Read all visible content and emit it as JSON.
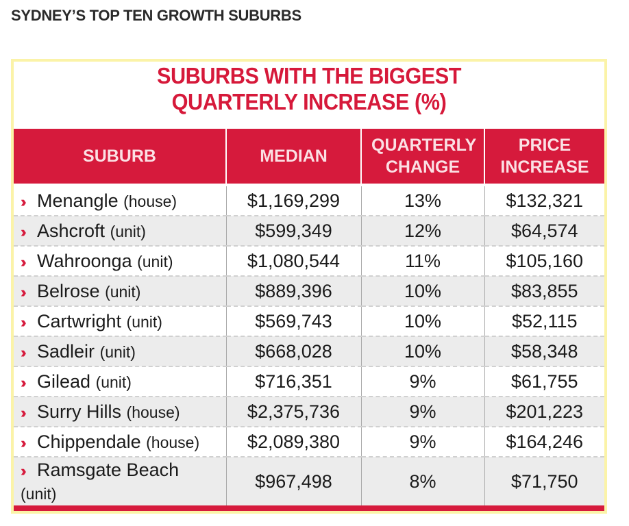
{
  "page": {
    "heading": "SYDNEY’S TOP TEN GROWTH SUBURBS"
  },
  "card": {
    "title_line1": "SUBURBS WITH THE BIGGEST",
    "title_line2": "QUARTERLY INCREASE (%)"
  },
  "table": {
    "columns": [
      "SUBURB",
      "MEDIAN",
      "QUARTERLY CHANGE",
      "PRICE INCREASE"
    ],
    "rows": [
      {
        "suburb": "Menangle",
        "type": "(house)",
        "median": "$1,169,299",
        "change": "13%",
        "increase": "$132,321"
      },
      {
        "suburb": "Ashcroft",
        "type": "(unit)",
        "median": "$599,349",
        "change": "12%",
        "increase": "$64,574"
      },
      {
        "suburb": "Wahroonga",
        "type": "(unit)",
        "median": "$1,080,544",
        "change": "11%",
        "increase": "$105,160"
      },
      {
        "suburb": "Belrose",
        "type": "(unit)",
        "median": "$889,396",
        "change": "10%",
        "increase": "$83,855"
      },
      {
        "suburb": "Cartwright",
        "type": "(unit)",
        "median": "$569,743",
        "change": "10%",
        "increase": "$52,115"
      },
      {
        "suburb": "Sadleir",
        "type": "(unit)",
        "median": "$668,028",
        "change": "10%",
        "increase": "$58,348"
      },
      {
        "suburb": "Gilead",
        "type": "(unit)",
        "median": "$716,351",
        "change": "9%",
        "increase": "$61,755"
      },
      {
        "suburb": "Surry Hills",
        "type": "(house)",
        "median": "$2,375,736",
        "change": "9%",
        "increase": "$201,223"
      },
      {
        "suburb": "Chippendale",
        "type": "(house)",
        "median": "$2,089,380",
        "change": "9%",
        "increase": "$164,246"
      },
      {
        "suburb": "Ramsgate Beach",
        "type": "(unit)",
        "median": "$967,498",
        "change": "8%",
        "increase": "$71,750"
      }
    ]
  },
  "colors": {
    "accent_red": "#d61a3c",
    "border_yellow": "#fbf3a8"
  },
  "icons": {
    "row_marker": "double-chevron-right-icon"
  }
}
